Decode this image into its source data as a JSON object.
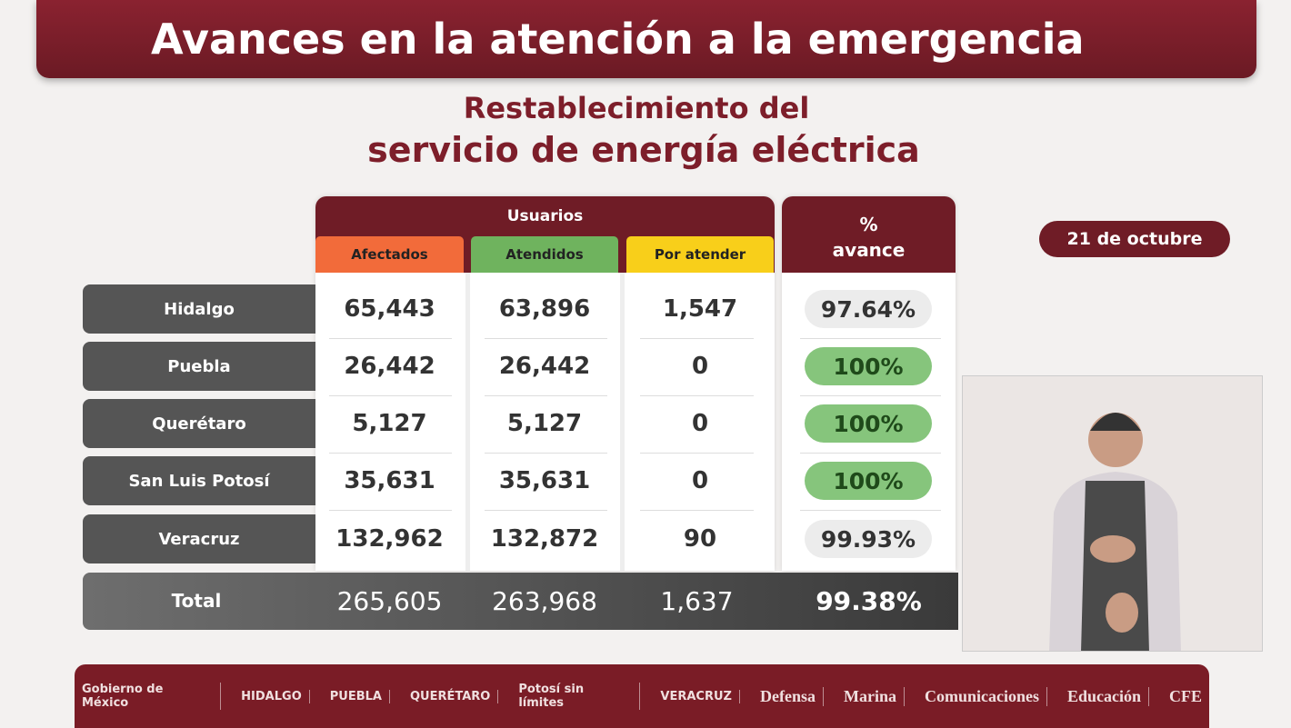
{
  "banner": {
    "title": "Avances en la atención a la emergencia"
  },
  "subtitle": {
    "line1": "Restablecimiento del",
    "line2": "servicio de energía eléctrica"
  },
  "date": "21 de octubre",
  "table": {
    "group_header": "Usuarios",
    "col_afectados": "Afectados",
    "col_atendidos": "Atendidos",
    "col_por_atender": "Por atender",
    "col_avance_1": "%",
    "col_avance_2": "avance",
    "rows": [
      {
        "name": "Hidalgo",
        "afectados": "65,443",
        "atendidos": "63,896",
        "por_atender": "1,547",
        "avance": "97.64%"
      },
      {
        "name": "Puebla",
        "afectados": "26,442",
        "atendidos": "26,442",
        "por_atender": "0",
        "avance": "100%"
      },
      {
        "name": "Querétaro",
        "afectados": "5,127",
        "atendidos": "5,127",
        "por_atender": "0",
        "avance": "100%"
      },
      {
        "name": "San Luis Potosí",
        "afectados": "35,631",
        "atendidos": "35,631",
        "por_atender": "0",
        "avance": "100%"
      },
      {
        "name": "Veracruz",
        "afectados": "132,962",
        "atendidos": "132,872",
        "por_atender": "90",
        "avance": "99.93%"
      }
    ],
    "total": {
      "name": "Total",
      "afectados": "265,605",
      "atendidos": "263,968",
      "por_atender": "1,637",
      "avance": "99.38%"
    }
  },
  "colors": {
    "afectados": "#f26b3a",
    "atendidos": "#6fb35e",
    "por_atender": "#f8cf1a",
    "brand": "#6f1c26"
  },
  "footer": {
    "logos": [
      "Gobierno de México",
      "HIDALGO",
      "PUEBLA",
      "QUERÉTARO",
      "Potosí sin límites",
      "VERACRUZ",
      "Defensa",
      "Marina",
      "Comunicaciones",
      "Educación",
      "CFE"
    ]
  }
}
